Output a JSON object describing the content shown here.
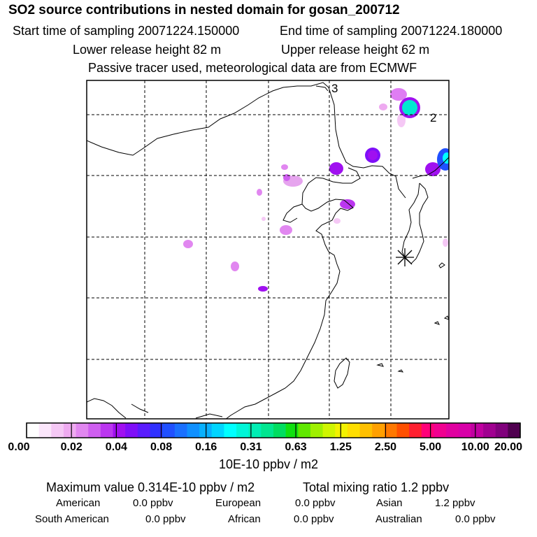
{
  "header": {
    "title": "SO2 source contributions in nested domain for gosan_200712",
    "start_time": "Start time of sampling 20071224.150000",
    "end_time": "End time of sampling 20071224.180000",
    "lower_height": "Lower release height   82 m",
    "upper_height": "Upper release height   62 m",
    "note": "Passive tracer used, meteorological data are from ECMWF"
  },
  "map": {
    "marker_labels": [
      "3",
      "2"
    ],
    "receptor_symbol": "station-asterisk"
  },
  "colorbar": {
    "colors": [
      "#ffffff",
      "#fbe6fb",
      "#f5c8f5",
      "#eeaaf0",
      "#e187f0",
      "#cf5ff0",
      "#bb36f0",
      "#a010f0",
      "#7f0ff8",
      "#5a1cfd",
      "#3030ff",
      "#2050ff",
      "#1a70ff",
      "#1090ff",
      "#08b0ff",
      "#00d5ff",
      "#00ffff",
      "#00f5d8",
      "#00eeb4",
      "#00e690",
      "#00dd60",
      "#10e010",
      "#60e800",
      "#9ff000",
      "#cff500",
      "#f2f200",
      "#ffde00",
      "#ffc000",
      "#ffa000",
      "#ff7800",
      "#ff5000",
      "#ff2030",
      "#ff0078",
      "#f00090",
      "#e000a0",
      "#d800a8",
      "#c000a0",
      "#a00090",
      "#80007c",
      "#500050"
    ],
    "labels": [
      "0.00",
      "0.02",
      "0.04",
      "0.08",
      "0.16",
      "0.31",
      "0.63",
      "1.25",
      "2.50",
      "5.00",
      "10.00",
      "20.00"
    ],
    "unit": "10E-10 ppbv / m2"
  },
  "summary": {
    "max_value": "Maximum value  0.314E-10 ppbv / m2",
    "total_mixing": "Total mixing ratio       1.2 ppbv",
    "regions": [
      {
        "name": "American",
        "value": "0.0 ppbv"
      },
      {
        "name": "European",
        "value": "0.0 ppbv"
      },
      {
        "name": "Asian",
        "value": "1.2 ppbv"
      },
      {
        "name": "South American",
        "value": "0.0 ppbv"
      },
      {
        "name": "African",
        "value": "0.0 ppbv"
      },
      {
        "name": "Australian",
        "value": "0.0 ppbv"
      }
    ]
  }
}
